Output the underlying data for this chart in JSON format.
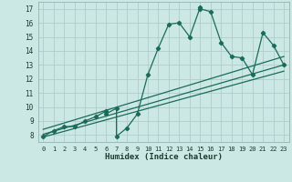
{
  "title": "",
  "xlabel": "Humidex (Indice chaleur)",
  "bg_color": "#cce8e4",
  "grid_color": "#b0cccc",
  "line_color": "#1a6b5a",
  "xlim": [
    -0.5,
    23.5
  ],
  "ylim": [
    7.5,
    17.5
  ],
  "xticks": [
    0,
    1,
    2,
    3,
    4,
    5,
    6,
    7,
    8,
    9,
    10,
    11,
    12,
    13,
    14,
    15,
    16,
    17,
    18,
    19,
    20,
    21,
    22,
    23
  ],
  "yticks": [
    8,
    9,
    10,
    11,
    12,
    13,
    14,
    15,
    16,
    17
  ],
  "scatter_x": [
    0,
    1,
    2,
    3,
    4,
    5,
    6,
    6,
    7,
    7,
    8,
    9,
    10,
    11,
    12,
    13,
    14,
    15,
    15,
    16,
    17,
    18,
    19,
    20,
    21,
    22,
    23
  ],
  "scatter_y": [
    7.9,
    8.3,
    8.6,
    8.6,
    9.0,
    9.3,
    9.7,
    9.5,
    9.9,
    7.9,
    8.5,
    9.5,
    12.3,
    14.2,
    15.9,
    16.0,
    15.0,
    17.1,
    17.0,
    16.8,
    14.6,
    13.6,
    13.5,
    12.3,
    15.3,
    14.4,
    13.0
  ],
  "line1_x": [
    0,
    23
  ],
  "line1_y": [
    8.05,
    13.0
  ],
  "line2_x": [
    0,
    23
  ],
  "line2_y": [
    8.4,
    13.6
  ],
  "line3_x": [
    0,
    23
  ],
  "line3_y": [
    7.85,
    12.55
  ]
}
